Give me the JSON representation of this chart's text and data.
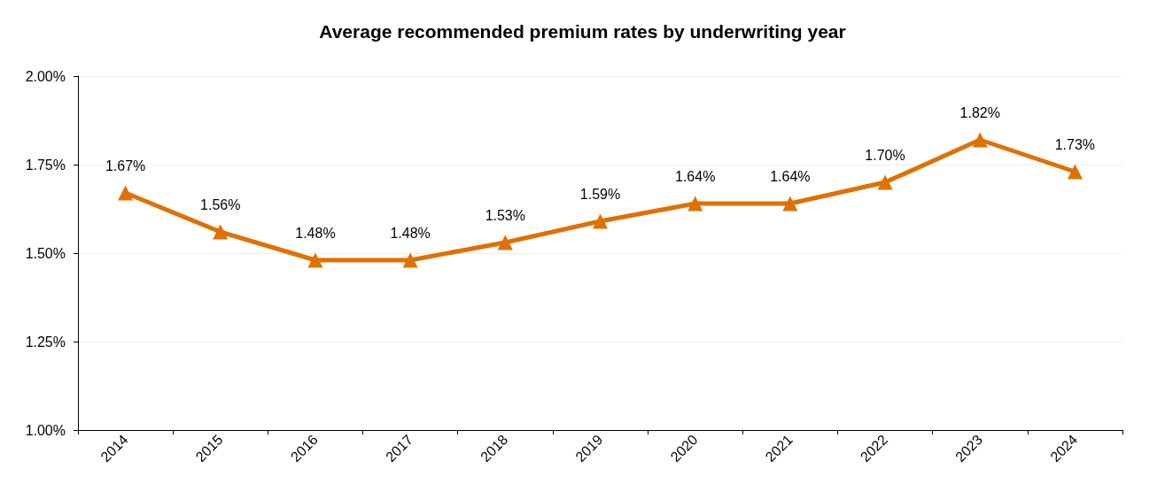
{
  "chart_data": {
    "type": "line",
    "title": "Average recommended premium rates by underwriting year",
    "categories": [
      "2014",
      "2015",
      "2016",
      "2017",
      "2018",
      "2019",
      "2020",
      "2021",
      "2022",
      "2023",
      "2024"
    ],
    "series": [
      {
        "color": "#e07000",
        "values": [
          1.67,
          1.56,
          1.48,
          1.48,
          1.53,
          1.59,
          1.64,
          1.64,
          1.7,
          1.82,
          1.73
        ],
        "value_labels": [
          "1.67%",
          "1.56%",
          "1.48%",
          "1.48%",
          "1.53%",
          "1.59%",
          "1.64%",
          "1.64%",
          "1.70%",
          "1.82%",
          "1.73%"
        ]
      }
    ],
    "ylim": [
      1,
      2
    ],
    "yticks": [
      {
        "value": 1,
        "label": "1.00%"
      },
      {
        "value": 1.25,
        "label": "1.25%"
      },
      {
        "value": 1.5,
        "label": "1.50%"
      },
      {
        "value": 1.75,
        "label": "1.75%"
      },
      {
        "value": 2,
        "label": "2.00%"
      }
    ],
    "grid": "y",
    "marker": "triangle",
    "line_style": "solid"
  }
}
